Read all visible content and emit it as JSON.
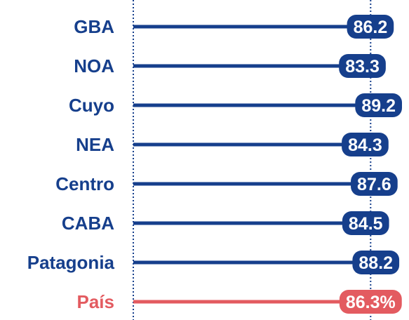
{
  "chart_data": {
    "type": "lollipop",
    "categories": [
      "GBA",
      "NOA",
      "Cuyo",
      "NEA",
      "Centro",
      "CABA",
      "Patagonia",
      "País"
    ],
    "values": [
      86.2,
      83.3,
      89.2,
      84.3,
      87.6,
      84.5,
      88.2,
      86.3
    ],
    "value_labels": [
      "86.2",
      "83.3",
      "89.2",
      "84.3",
      "87.6",
      "84.5",
      "88.2",
      "86.3%"
    ],
    "colors": [
      "#163f8c",
      "#163f8c",
      "#163f8c",
      "#163f8c",
      "#163f8c",
      "#163f8c",
      "#163f8c",
      "#e35b60"
    ],
    "xlim": [
      0,
      100
    ]
  }
}
